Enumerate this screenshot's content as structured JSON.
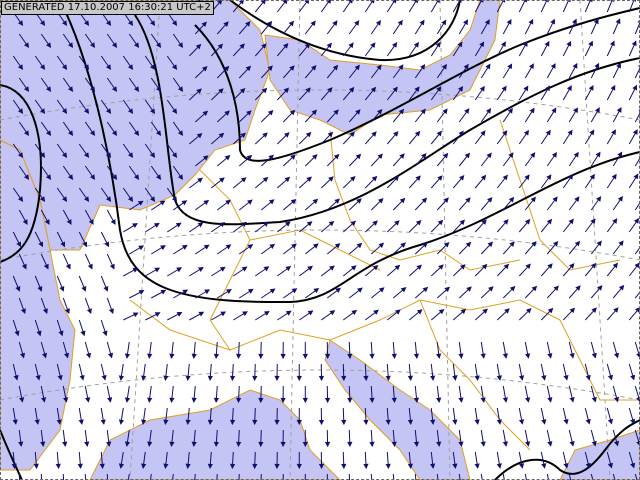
{
  "stamp": {
    "text": "GENERATED 17.10.2007 16:30:21 UTC+2"
  },
  "colors": {
    "shaded_area": "#c4c4f5",
    "land": "#ffffff",
    "borders": "#e0a020",
    "isolines": "#000000",
    "wind_arrows": "#101070",
    "graticule": "#a0a0a0"
  },
  "layers": [
    "shaded-area",
    "country-borders",
    "graticule",
    "isolines",
    "wind-arrows"
  ]
}
